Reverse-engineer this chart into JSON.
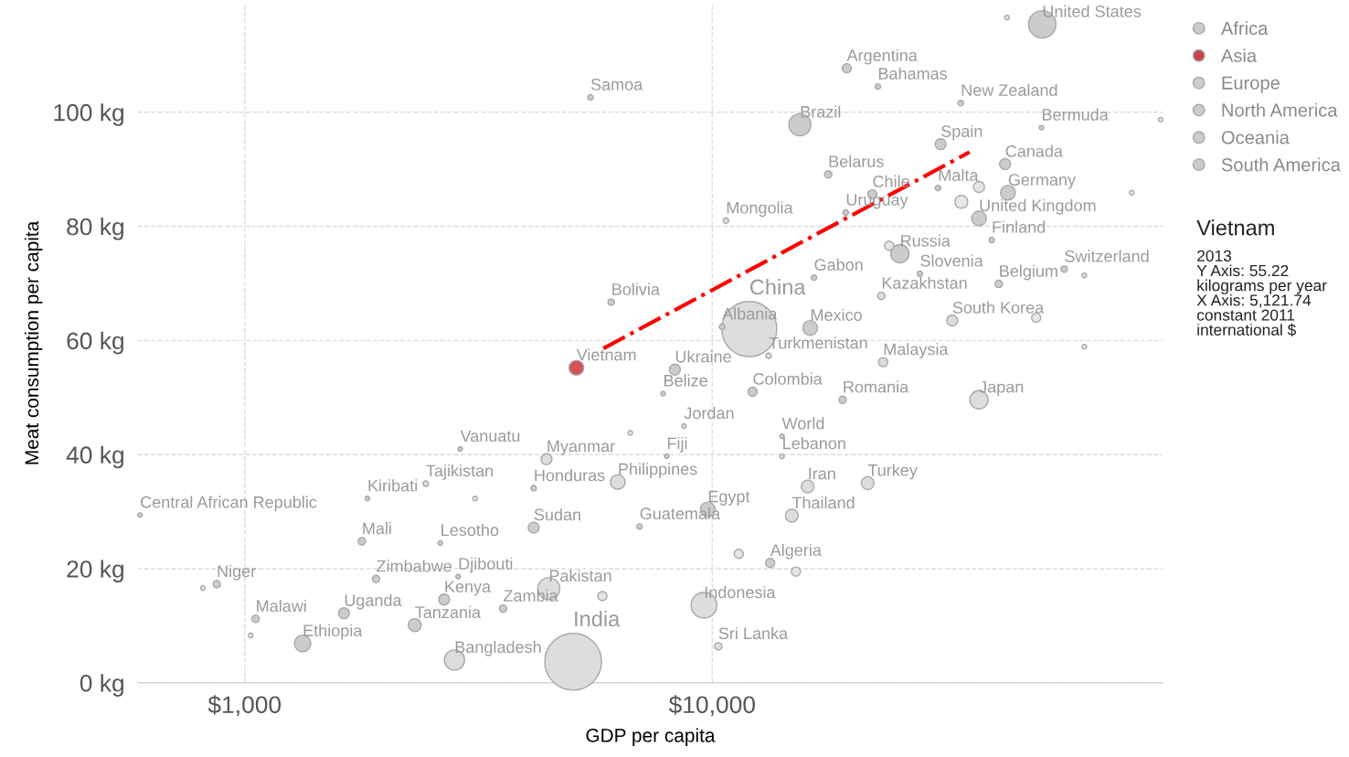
{
  "chart_data": {
    "type": "bubble",
    "xlabel": "GDP per capita",
    "ylabel": "Meat consumption per capita",
    "log": "x",
    "grid": true,
    "legend": "top right",
    "xlim": [
      590,
      92000
    ],
    "ylim": [
      0,
      119
    ],
    "xticks": [
      {
        "value": 1000,
        "label": "$1,000"
      },
      {
        "value": 10000,
        "label": "$10,000"
      }
    ],
    "yticks": [
      {
        "value": 0,
        "label": "0 kg"
      },
      {
        "value": 20,
        "label": "20 kg"
      },
      {
        "value": 40,
        "label": "40 kg"
      },
      {
        "value": 60,
        "label": "60 kg"
      },
      {
        "value": 80,
        "label": "80 kg"
      },
      {
        "value": 100,
        "label": "100 kg"
      }
    ],
    "series": [
      {
        "name": "Africa",
        "color": "#cccccc",
        "x": [
          9780,
          871,
          1055,
          1330,
          1780,
          1910,
          1630,
          2670,
          2310,
          2860,
          2620,
          3570,
          4150,
          597,
          13300,
          16500
        ],
        "values": [
          30.4,
          17.3,
          11.2,
          6.9,
          24.8,
          18.2,
          12.2,
          14.6,
          10.1,
          18.6,
          24.5,
          13.0,
          27.2,
          29.4,
          21.0,
          71.0
        ],
        "sizes": [
          0.067,
          0.017,
          0.017,
          0.084,
          0.017,
          0.017,
          0.037,
          0.037,
          0.051,
          0.0065,
          0.0065,
          0.017,
          0.037,
          0.0065,
          0.026,
          0.0094
        ]
      },
      {
        "name": "Asia",
        "color": "#c8454f",
        "colors": [
          "#d2515a",
          "#dddddd",
          "#dddddd",
          "#dddddd",
          "#dddddd",
          "#dddddd",
          "#dddddd",
          "#dddddd",
          "#dddddd",
          "#dddddd",
          "#dddddd",
          "#dddddd",
          "#dddddd",
          "#dddddd",
          "#dddddd",
          "#dddddd",
          "#dddddd",
          "#dddddd",
          "#dddddd",
          "#dddddd",
          "#dddddd"
        ],
        "x": [
          5122,
          12000,
          5040,
          2810,
          4470,
          4420,
          2440,
          6280,
          10700,
          8700,
          14100,
          16000,
          14800,
          21500,
          9600,
          10300,
          37200,
          23200,
          13200,
          23000,
          32600
        ],
        "values": [
          55.22,
          62,
          3.7,
          4.0,
          16.5,
          39.2,
          34.9,
          35.2,
          81.0,
          45.0,
          39.7,
          34.4,
          29.3,
          35.0,
          13.6,
          6.4,
          49.6,
          56.2,
          57.3,
          67.8,
          63.5
        ],
        "sizes": [
          0.067,
          0.94,
          1,
          0.126,
          0.15,
          0.037,
          0.0094,
          0.067,
          0.0094,
          0.0065,
          0.0065,
          0.051,
          0.051,
          0.051,
          0.204,
          0.017,
          0.104,
          0.026,
          0.0094,
          0.017,
          0.037
        ]
      },
      {
        "name": "Europe",
        "color": "#cccccc",
        "x": [
          10500,
          8320,
          17700,
          25200,
          27800,
          19000,
          30800,
          30400,
          37200,
          39600,
          42900,
          41000,
          56600
        ],
        "values": [
          62.4,
          54.9,
          89.1,
          75.2,
          71.7,
          49.6,
          94.4,
          86.7,
          81.4,
          77.6,
          85.9,
          69.9,
          72.5
        ],
        "sizes": [
          0.0094,
          0.037,
          0.017,
          0.104,
          0.0094,
          0.017,
          0.037,
          0.0094,
          0.067,
          0.0094,
          0.067,
          0.017,
          0.013
        ]
      },
      {
        "name": "North America",
        "color": "#cccccc",
        "x": [
          50800,
          42300,
          16200,
          7850,
          4150,
          6990,
          22600,
          50600
        ],
        "values": [
          115.4,
          90.9,
          62.2,
          50.7,
          34.1,
          27.4,
          104.5,
          97.3
        ],
        "sizes": [
          0.234,
          0.037,
          0.067,
          0.0065,
          0.0094,
          0.0094,
          0.0094,
          0.0065
        ]
      },
      {
        "name": "Oceania",
        "color": "#cccccc",
        "x": [
          5490,
          2890,
          1830,
          7990,
          34000
        ],
        "values": [
          102.6,
          41.0,
          32.3,
          39.7,
          101.6
        ],
        "sizes": [
          0.0094,
          0.0065,
          0.0065,
          0.0065,
          0.0094
        ]
      },
      {
        "name": "South America",
        "color": "#cccccc",
        "x": [
          19400,
          15400,
          22000,
          19300,
          6080,
          12200
        ],
        "values": [
          107.7,
          97.8,
          85.6,
          82.4,
          66.7,
          51.0
        ],
        "sizes": [
          0.026,
          0.15,
          0.026,
          0.0094,
          0.013,
          0.026
        ]
      },
      {
        "color": "#cccccc",
        "x": [
          14100
        ],
        "values": [
          43.2
        ],
        "sizes": [
          0.0065
        ]
      },
      {
        "color": "#e6e6e6",
        "x": [
          42700,
          91000,
          78900,
          34100,
          37200,
          62500,
          49300,
          62500,
          6680,
          3110,
          11400,
          15100,
          814,
          5820,
          1030,
          23900
        ],
        "values": [
          116.6,
          98.7,
          85.9,
          84.3,
          86.9,
          71.4,
          64.0,
          58.9,
          43.8,
          32.3,
          22.6,
          19.5,
          16.6,
          15.2,
          8.3,
          76.6
        ],
        "sizes": [
          0.0065,
          0.0065,
          0.0065,
          0.051,
          0.037,
          0.0065,
          0.026,
          0.0065,
          0.0065,
          0.0065,
          0.026,
          0.026,
          0.0065,
          0.026,
          0.0065,
          0.026
        ]
      },
      {
        "type": "line",
        "color": "#ff0000",
        "line_style": "dashed",
        "x": [
          5850,
          35500
        ],
        "values": [
          58.6,
          93.0
        ]
      }
    ],
    "annotations": [
      {
        "text": "Central African Republic",
        "x": 597,
        "y": 29.4
      },
      {
        "text": "Niger",
        "x": 871,
        "y": 17.3
      },
      {
        "text": "Malawi",
        "x": 1055,
        "y": 11.2
      },
      {
        "text": "Ethiopia",
        "x": 1330,
        "y": 6.9
      },
      {
        "text": "Mali",
        "x": 1780,
        "y": 24.8
      },
      {
        "text": "Zimbabwe",
        "x": 1910,
        "y": 18.2
      },
      {
        "text": "Uganda",
        "x": 1630,
        "y": 12.2
      },
      {
        "text": "Kenya",
        "x": 2670,
        "y": 14.6
      },
      {
        "text": "Tanzania",
        "x": 2310,
        "y": 10.1
      },
      {
        "text": "Djibouti",
        "x": 2860,
        "y": 18.6
      },
      {
        "text": "Lesotho",
        "x": 2620,
        "y": 24.5
      },
      {
        "text": "Zambia",
        "x": 3570,
        "y": 13.0
      },
      {
        "text": "Sudan",
        "x": 4150,
        "y": 27.2
      },
      {
        "text": "Egypt",
        "x": 9780,
        "y": 30.4
      },
      {
        "text": "Algeria",
        "x": 13300,
        "y": 21.0
      },
      {
        "text": "Gabon",
        "x": 16500,
        "y": 71.0
      },
      {
        "text": "Vietnam",
        "x": 5122,
        "y": 55.22
      },
      {
        "text": "China",
        "x": 12000,
        "y": 62
      },
      {
        "text": "India",
        "x": 5040,
        "y": 3.7
      },
      {
        "text": "Bangladesh",
        "x": 2810,
        "y": 4.0
      },
      {
        "text": "Pakistan",
        "x": 4470,
        "y": 16.5
      },
      {
        "text": "Myanmar",
        "x": 4420,
        "y": 39.2
      },
      {
        "text": "Tajikistan",
        "x": 2440,
        "y": 34.9
      },
      {
        "text": "Philippines",
        "x": 6280,
        "y": 35.2
      },
      {
        "text": "Mongolia",
        "x": 10700,
        "y": 81.0
      },
      {
        "text": "Jordan",
        "x": 8700,
        "y": 45.0
      },
      {
        "text": "Lebanon",
        "x": 14100,
        "y": 39.7
      },
      {
        "text": "Iran",
        "x": 16000,
        "y": 34.4
      },
      {
        "text": "Thailand",
        "x": 14800,
        "y": 29.3
      },
      {
        "text": "Turkey",
        "x": 21500,
        "y": 35.0
      },
      {
        "text": "Indonesia",
        "x": 9600,
        "y": 13.6
      },
      {
        "text": "Sri Lanka",
        "x": 10300,
        "y": 6.4
      },
      {
        "text": "Japan",
        "x": 37200,
        "y": 49.6
      },
      {
        "text": "Malaysia",
        "x": 23200,
        "y": 56.2
      },
      {
        "text": "Turkmenistan",
        "x": 13200,
        "y": 57.3
      },
      {
        "text": "Kazakhstan",
        "x": 23000,
        "y": 67.8
      },
      {
        "text": "South Korea",
        "x": 32600,
        "y": 63.5
      },
      {
        "text": "Albania",
        "x": 10500,
        "y": 62.4
      },
      {
        "text": "Ukraine",
        "x": 8320,
        "y": 54.9
      },
      {
        "text": "Belarus",
        "x": 17700,
        "y": 89.1
      },
      {
        "text": "Russia",
        "x": 25200,
        "y": 75.2
      },
      {
        "text": "Slovenia",
        "x": 27800,
        "y": 71.7
      },
      {
        "text": "Romania",
        "x": 19000,
        "y": 49.6
      },
      {
        "text": "Spain",
        "x": 30800,
        "y": 94.4
      },
      {
        "text": "Malta",
        "x": 30400,
        "y": 86.7
      },
      {
        "text": "United Kingdom",
        "x": 37200,
        "y": 81.4
      },
      {
        "text": "Finland",
        "x": 39600,
        "y": 77.6
      },
      {
        "text": "Germany",
        "x": 42900,
        "y": 85.9
      },
      {
        "text": "Belgium",
        "x": 41000,
        "y": 69.9
      },
      {
        "text": "Switzerland",
        "x": 56600,
        "y": 72.5
      },
      {
        "text": "United States",
        "x": 50800,
        "y": 115.4
      },
      {
        "text": "Canada",
        "x": 42300,
        "y": 90.9
      },
      {
        "text": "Mexico",
        "x": 16200,
        "y": 62.2
      },
      {
        "text": "Belize",
        "x": 7850,
        "y": 50.7
      },
      {
        "text": "Honduras",
        "x": 4150,
        "y": 34.1
      },
      {
        "text": "Guatemala",
        "x": 6990,
        "y": 27.4
      },
      {
        "text": "Bahamas",
        "x": 22600,
        "y": 104.5
      },
      {
        "text": "Bermuda",
        "x": 50600,
        "y": 97.3
      },
      {
        "text": "Samoa",
        "x": 5490,
        "y": 102.6
      },
      {
        "text": "Vanuatu",
        "x": 2890,
        "y": 41.0
      },
      {
        "text": "Kiribati",
        "x": 1830,
        "y": 32.3
      },
      {
        "text": "Fiji",
        "x": 7990,
        "y": 39.7
      },
      {
        "text": "New Zealand",
        "x": 34000,
        "y": 101.6
      },
      {
        "text": "Argentina",
        "x": 19400,
        "y": 107.7
      },
      {
        "text": "Brazil",
        "x": 15400,
        "y": 97.8
      },
      {
        "text": "Chile",
        "x": 22000,
        "y": 85.6
      },
      {
        "text": "Uruguay",
        "x": 19300,
        "y": 82.4
      },
      {
        "text": "Bolivia",
        "x": 6080,
        "y": 66.7
      },
      {
        "text": "Colombia",
        "x": 12200,
        "y": 51.0
      },
      {
        "text": "World",
        "x": 14100,
        "y": 43.2
      },
      "Vietnam",
      "2013\nY Axis: 55.22\nkilograms per year\nX Axis: 5,121.74\nconstant 2011\ninternational $"
    ]
  }
}
